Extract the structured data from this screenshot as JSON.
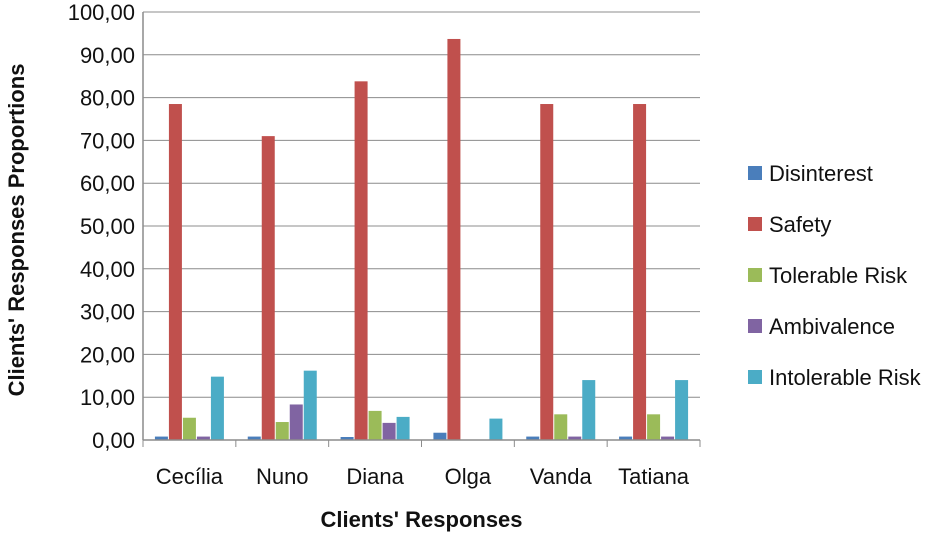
{
  "chart_data": {
    "type": "bar",
    "title": "",
    "xlabel": "Clients' Responses",
    "ylabel": "Clients' Responses Proportions",
    "ylim": [
      0,
      100
    ],
    "y_ticks": [
      "0,00",
      "10,00",
      "20,00",
      "30,00",
      "40,00",
      "50,00",
      "60,00",
      "70,00",
      "80,00",
      "90,00",
      "100,00"
    ],
    "grid": true,
    "legend_position": "right",
    "categories": [
      "Cecília",
      "Nuno",
      "Diana",
      "Olga",
      "Vanda",
      "Tatiana"
    ],
    "series": [
      {
        "name": "Disinterest",
        "color": "#4a7ebb",
        "values": [
          0.8,
          0.8,
          0.7,
          1.7,
          0.8,
          0.8
        ]
      },
      {
        "name": "Safety",
        "color": "#c0504d",
        "values": [
          78.5,
          71.0,
          83.8,
          93.7,
          78.5,
          78.5
        ]
      },
      {
        "name": "Tolerable Risk",
        "color": "#9bbb59",
        "values": [
          5.2,
          4.2,
          6.8,
          0,
          6.0,
          6.0
        ]
      },
      {
        "name": "Ambivalence",
        "color": "#8064a2",
        "values": [
          0.8,
          8.3,
          4.0,
          0,
          0.8,
          0.8
        ]
      },
      {
        "name": "Intolerable Risk",
        "color": "#4bacc6",
        "values": [
          14.8,
          16.2,
          5.4,
          5.0,
          14.0,
          14.0
        ]
      }
    ]
  }
}
